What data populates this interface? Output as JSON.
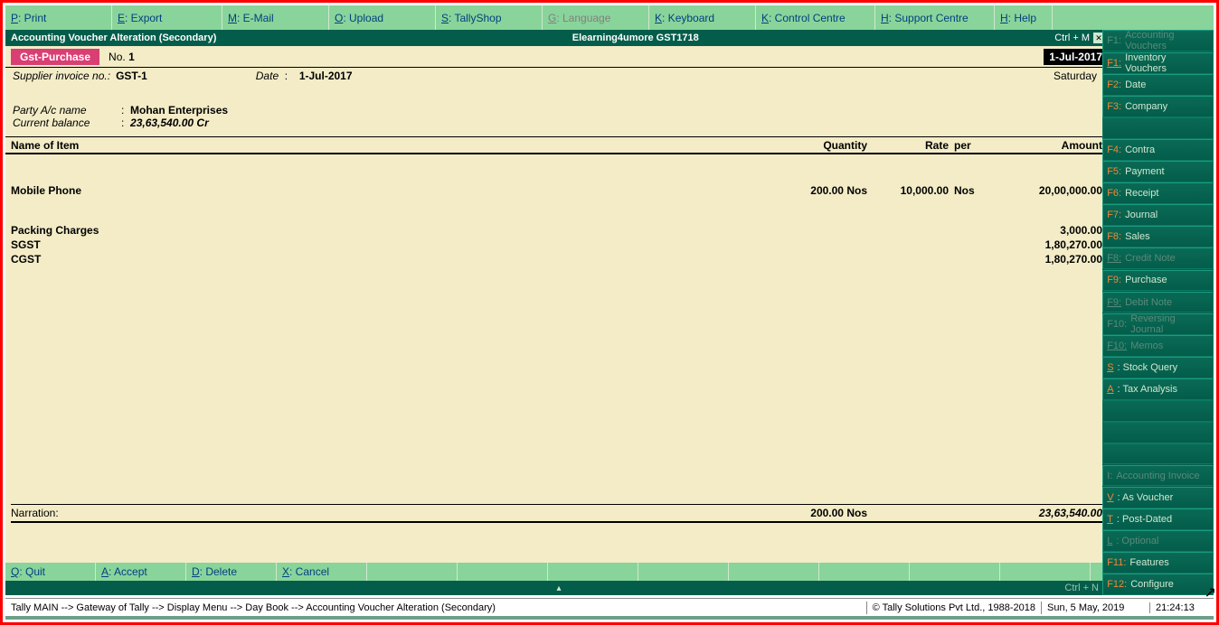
{
  "topmenu": [
    {
      "key": "P",
      "label": ": Print"
    },
    {
      "key": "E",
      "label": ": Export"
    },
    {
      "key": "M",
      "label": ": E-Mail"
    },
    {
      "key": "O",
      "label": ": Upload"
    },
    {
      "key": "S",
      "label": ": TallyShop"
    },
    {
      "key": "G",
      "label": ": Language",
      "disabled": true
    },
    {
      "key": "K",
      "label": ": Keyboard"
    },
    {
      "key": "K",
      "label": ": Control Centre"
    },
    {
      "key": "H",
      "label": ": Support Centre"
    },
    {
      "key": "H",
      "label": ": Help"
    }
  ],
  "titlebar": {
    "left": "Accounting Voucher  Alteration  (Secondary)",
    "center": "Elearning4umore GST1718",
    "ctrl": "Ctrl + M"
  },
  "voucher": {
    "type": "Gst-Purchase",
    "no_lbl": "No.",
    "no_val": "1",
    "date_lbl": "Date",
    "date_val": "1-Jul-2017",
    "date_right": "1-Jul-2017",
    "day": "Saturday",
    "supplier_lbl": "Supplier invoice no.:",
    "supplier_val": "GST-1",
    "party_lbl": "Party A/c name",
    "party_val": "Mohan Enterprises",
    "bal_lbl": "Current balance",
    "bal_val": "23,63,540.00 Cr"
  },
  "cols": {
    "name": "Name of Item",
    "qty": "Quantity",
    "rate": "Rate",
    "per": "per",
    "amt": "Amount"
  },
  "items": [
    {
      "name": "Mobile Phone",
      "qty": "200.00 Nos",
      "rate": "10,000.00",
      "per": "Nos",
      "amt": "20,00,000.00"
    }
  ],
  "ledgers": [
    {
      "name": "Packing Charges",
      "amt": "3,000.00"
    },
    {
      "name": "SGST",
      "amt": "1,80,270.00"
    },
    {
      "name": "CGST",
      "amt": "1,80,270.00"
    }
  ],
  "totals": {
    "narr": "Narration:",
    "qty": "200.00 Nos",
    "amt": "23,63,540.00"
  },
  "actions": [
    {
      "key": "Q",
      "label": ": Quit"
    },
    {
      "key": "A",
      "label": ": Accept"
    },
    {
      "key": "D",
      "label": ": Delete"
    },
    {
      "key": "X",
      "label": ": Cancel"
    }
  ],
  "ctrln": "Ctrl + N",
  "status": {
    "path": "Tally MAIN -->  Gateway of Tally -->  Display Menu -->  Day Book -->  Accounting Voucher  Alteration  (Secondary)",
    "copy": "© Tally Solutions Pvt Ltd., 1988-2018",
    "date": "Sun, 5 May, 2019",
    "time": "21:24:13"
  },
  "rpanel": [
    {
      "key": "F1:",
      "label": "Accounting Vouchers",
      "disabled": true
    },
    {
      "key": "F1:",
      "label": "Inventory Vouchers",
      "uline": true
    },
    {
      "key": "F2:",
      "label": "Date"
    },
    {
      "key": "F3:",
      "label": "Company"
    },
    {
      "gap": true
    },
    {
      "key": "F4:",
      "label": "Contra"
    },
    {
      "key": "F5:",
      "label": "Payment"
    },
    {
      "key": "F6:",
      "label": "Receipt"
    },
    {
      "key": "F7:",
      "label": "Journal"
    },
    {
      "key": "F8:",
      "label": "Sales"
    },
    {
      "key": "F8:",
      "label": "Credit Note",
      "disabled": true,
      "uline": true
    },
    {
      "key": "F9:",
      "label": "Purchase"
    },
    {
      "key": "F9:",
      "label": "Debit Note",
      "disabled": true,
      "uline": true
    },
    {
      "key": "F10:",
      "label": "Reversing Journal",
      "disabled": true
    },
    {
      "key": "F10:",
      "label": "Memos",
      "disabled": true,
      "uline": true
    },
    {
      "key": "S",
      "label": ": Stock Query",
      "uline": true
    },
    {
      "key": "A",
      "label": ": Tax Analysis",
      "uline": true
    },
    {
      "gap": true
    },
    {
      "gap": true
    },
    {
      "gap": true
    },
    {
      "key": "I:",
      "label": "Accounting Invoice",
      "disabled": true
    },
    {
      "key": "V",
      "label": ": As Voucher",
      "uline": true
    },
    {
      "key": "T",
      "label": ": Post-Dated",
      "uline": true
    },
    {
      "key": "L",
      "label": ": Optional",
      "disabled": true,
      "uline": true
    },
    {
      "spacer": true
    },
    {
      "key": "F11:",
      "label": "Features"
    },
    {
      "key": "F12:",
      "label": "Configure"
    }
  ],
  "topmenu_widths": [
    118,
    122,
    118,
    118,
    118,
    118,
    118,
    132,
    132,
    64
  ]
}
